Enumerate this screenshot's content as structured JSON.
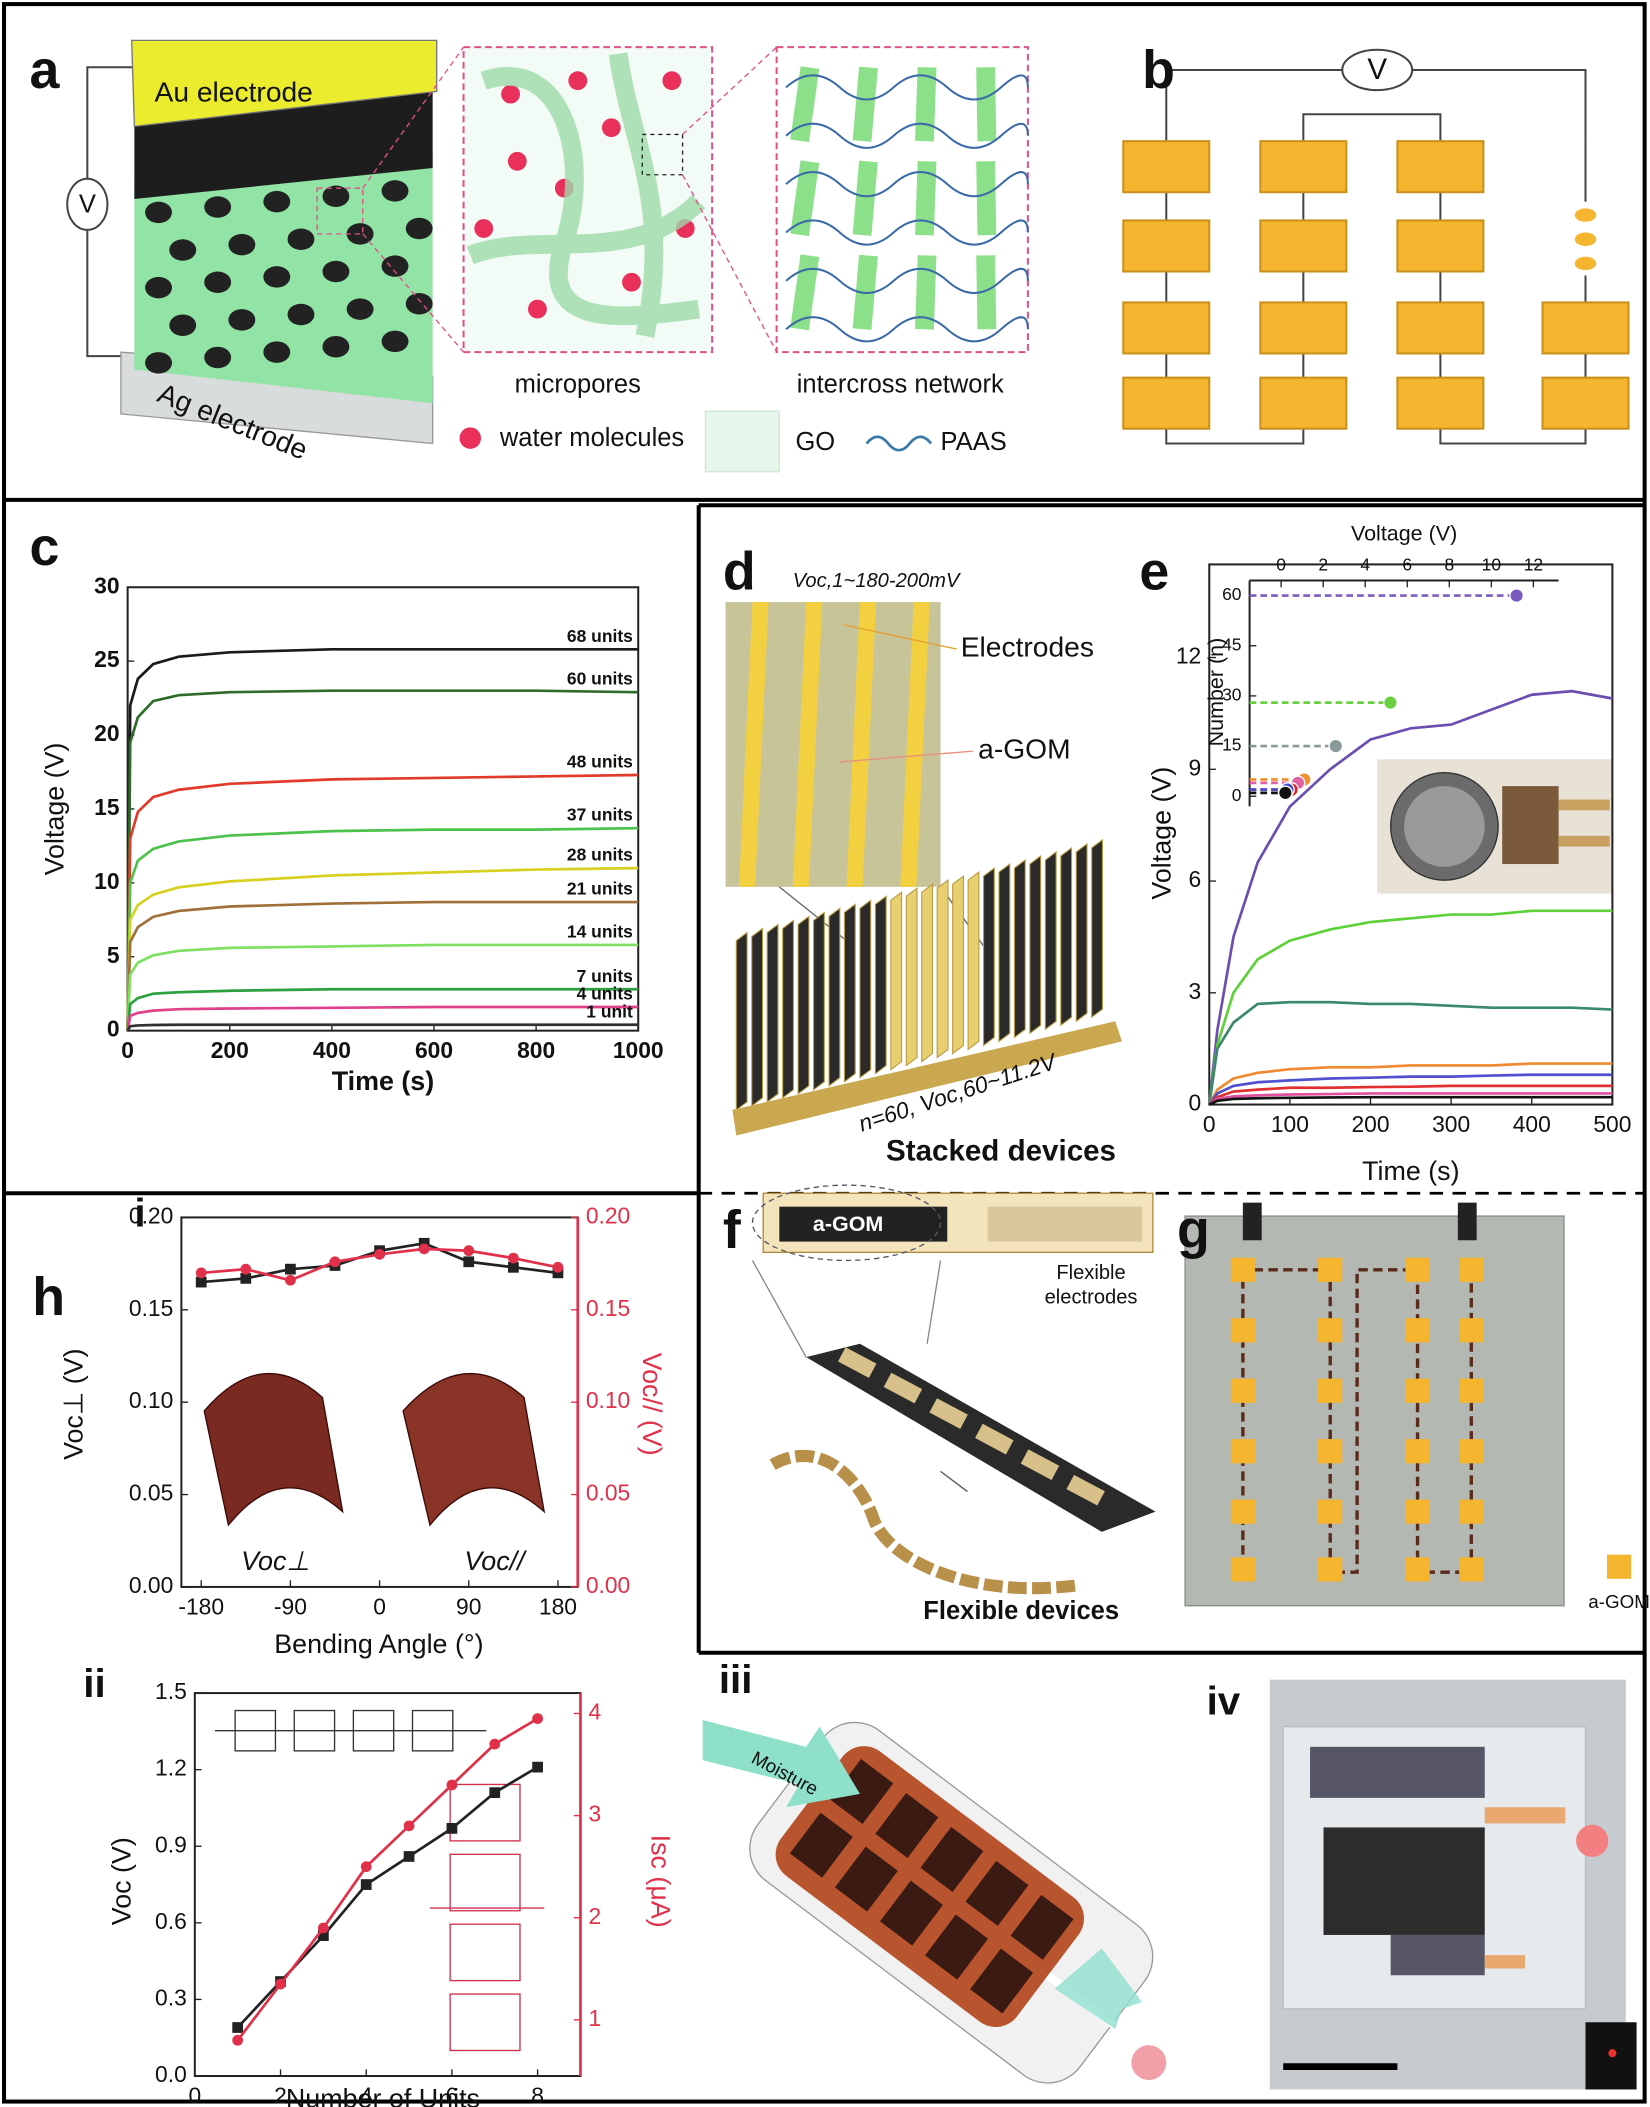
{
  "panels": {
    "a": {
      "letter": "a",
      "au": "Au electrode",
      "ag": "Ag electrode",
      "v": "V",
      "micropores": "micropores",
      "network": "intercross network",
      "water": "water molecules",
      "go": "GO",
      "paas": "PAAS"
    },
    "b": {
      "letter": "b",
      "v": "V"
    },
    "c": {
      "letter": "c"
    },
    "d": {
      "letter": "d",
      "voc1": "Voc,1~180-200mV",
      "electrodes": "Electrodes",
      "agom": "a-GOM",
      "voc60": "n=60, Voc,60~11.2V",
      "caption": "Stacked devices"
    },
    "e": {
      "letter": "e"
    },
    "f": {
      "letter": "f",
      "agom": "a-GOM",
      "electrodes": [
        "Flexible",
        "electrodes"
      ],
      "caption": "Flexible devices"
    },
    "g": {
      "letter": "g",
      "agom": "a-GOM"
    },
    "h": {
      "letter": "h",
      "i": "i",
      "ii": "ii",
      "iii": "iii",
      "moisture": "Moisture",
      "iv": "iv"
    }
  },
  "chart_data": [
    {
      "type": "line",
      "xlabel": "Time (s)",
      "ylabel": "Voltage (V)",
      "x": [
        0,
        5,
        20,
        50,
        100,
        200,
        400,
        600,
        800,
        1000
      ],
      "xlim": [
        0,
        1000
      ],
      "xticks": [
        0,
        200,
        400,
        600,
        800,
        1000
      ],
      "ylim": [
        0,
        30
      ],
      "yticks": [
        0,
        5,
        10,
        15,
        20,
        25,
        30
      ],
      "series": [
        {
          "name": "68 units",
          "color": "#1a1a1a",
          "values": [
            0,
            22,
            23.8,
            24.8,
            25.3,
            25.6,
            25.8,
            25.8,
            25.8,
            25.8
          ]
        },
        {
          "name": "60 units",
          "color": "#2f6b2a",
          "values": [
            0,
            19.5,
            21.2,
            22.3,
            22.7,
            22.9,
            23,
            23,
            23,
            22.9
          ]
        },
        {
          "name": "48 units",
          "color": "#e23a2a",
          "values": [
            0,
            13,
            14.8,
            15.8,
            16.3,
            16.7,
            17,
            17.1,
            17.2,
            17.3
          ]
        },
        {
          "name": "37 units",
          "color": "#4cc24a",
          "values": [
            0,
            10,
            11.5,
            12.3,
            12.8,
            13.2,
            13.5,
            13.6,
            13.6,
            13.7
          ]
        },
        {
          "name": "28 units",
          "color": "#d8d020",
          "values": [
            0,
            7.5,
            8.5,
            9.2,
            9.7,
            10.1,
            10.5,
            10.7,
            10.9,
            11
          ]
        },
        {
          "name": "21 units",
          "color": "#a0703a",
          "values": [
            0,
            6,
            7,
            7.7,
            8.1,
            8.4,
            8.6,
            8.7,
            8.7,
            8.7
          ]
        },
        {
          "name": "14 units",
          "color": "#7ee060",
          "values": [
            0,
            3.8,
            4.6,
            5.1,
            5.4,
            5.6,
            5.7,
            5.8,
            5.8,
            5.8
          ]
        },
        {
          "name": "7 units",
          "color": "#2ea040",
          "values": [
            0,
            1.8,
            2.2,
            2.5,
            2.6,
            2.7,
            2.8,
            2.8,
            2.8,
            2.8
          ]
        },
        {
          "name": "4 units",
          "color": "#e0408a",
          "values": [
            0,
            1,
            1.2,
            1.35,
            1.45,
            1.5,
            1.55,
            1.6,
            1.6,
            1.6
          ]
        },
        {
          "name": "1 unit",
          "color": "#303030",
          "values": [
            0,
            0.3,
            0.35,
            0.38,
            0.4,
            0.4,
            0.4,
            0.4,
            0.4,
            0.4
          ]
        }
      ]
    },
    {
      "type": "line",
      "xlabel": "Time (s)",
      "ylabel": "Voltage (V)",
      "x": [
        0,
        10,
        30,
        60,
        100,
        150,
        200,
        250,
        300,
        350,
        400,
        450,
        500
      ],
      "xlim": [
        0,
        500
      ],
      "xticks": [
        0,
        100,
        200,
        300,
        400,
        500
      ],
      "ylim": [
        0,
        14.5
      ],
      "yticks": [
        0,
        3,
        6,
        9,
        12
      ],
      "series": [
        {
          "color": "#6a4fb0",
          "values": [
            0,
            2,
            4.5,
            6.5,
            8,
            9,
            9.8,
            10.1,
            10.2,
            10.6,
            11,
            11.1,
            10.9
          ]
        },
        {
          "color": "#5ed13a",
          "values": [
            0,
            1.6,
            3,
            3.9,
            4.4,
            4.7,
            4.9,
            5,
            5.1,
            5.1,
            5.2,
            5.2,
            5.2
          ]
        },
        {
          "color": "#3a8a6a",
          "values": [
            0,
            1.5,
            2.2,
            2.7,
            2.75,
            2.75,
            2.7,
            2.7,
            2.65,
            2.6,
            2.6,
            2.6,
            2.55
          ]
        },
        {
          "color": "#f08a30",
          "values": [
            0,
            0.4,
            0.7,
            0.85,
            0.95,
            1,
            1,
            1.05,
            1.05,
            1.05,
            1.1,
            1.1,
            1.1
          ]
        },
        {
          "color": "#5050d0",
          "values": [
            0,
            0.3,
            0.5,
            0.6,
            0.65,
            0.7,
            0.72,
            0.75,
            0.75,
            0.78,
            0.8,
            0.8,
            0.8
          ]
        },
        {
          "color": "#e03030",
          "values": [
            0,
            0.2,
            0.35,
            0.4,
            0.45,
            0.45,
            0.47,
            0.48,
            0.5,
            0.5,
            0.5,
            0.5,
            0.5
          ]
        },
        {
          "color": "#e050a0",
          "values": [
            0,
            0.15,
            0.22,
            0.25,
            0.27,
            0.28,
            0.3,
            0.3,
            0.3,
            0.3,
            0.3,
            0.3,
            0.3
          ]
        },
        {
          "color": "#111111",
          "values": [
            0,
            0.1,
            0.15,
            0.17,
            0.18,
            0.19,
            0.2,
            0.2,
            0.2,
            0.2,
            0.2,
            0.2,
            0.2
          ]
        }
      ]
    },
    {
      "type": "scatter",
      "xlabel": "Voltage (V)",
      "ylabel": "Number (n)",
      "xlim": [
        -1.5,
        13.2
      ],
      "xticks": [
        0,
        2,
        4,
        6,
        8,
        10,
        12
      ],
      "ylim": [
        -3,
        64.5
      ],
      "yticks": [
        0,
        15,
        30,
        45,
        60
      ],
      "series": [
        {
          "color": "#7a5cc0",
          "x": [
            11.2
          ],
          "values": [
            60
          ]
        },
        {
          "color": "#6ad040",
          "x": [
            5.2
          ],
          "values": [
            28
          ]
        },
        {
          "color": "#8a9a9a",
          "x": [
            2.6
          ],
          "values": [
            15
          ]
        },
        {
          "color": "#f09030",
          "x": [
            1.1
          ],
          "values": [
            5
          ]
        },
        {
          "color": "#e060a0",
          "x": [
            0.8
          ],
          "values": [
            4
          ]
        },
        {
          "color": "#e02020",
          "x": [
            0.5
          ],
          "values": [
            2
          ]
        },
        {
          "color": "#4050d0",
          "x": [
            0.3
          ],
          "values": [
            2
          ]
        },
        {
          "color": "#111111",
          "x": [
            0.2
          ],
          "values": [
            1
          ]
        }
      ]
    },
    {
      "type": "line",
      "xlabel": "Bending Angle (°)",
      "ylabel": "Voc⊥ (V)",
      "y2label": "Voc// (V)",
      "annotations": [
        "Voc⊥",
        "Voc//"
      ],
      "x": [
        -180,
        -135,
        -90,
        -45,
        0,
        45,
        90,
        135,
        180
      ],
      "xlim": [
        -200,
        200
      ],
      "xticks": [
        -180,
        -90,
        0,
        90,
        180
      ],
      "ylim": [
        0,
        0.2
      ],
      "yticks": [
        {
          "value": 0,
          "label": "0.00"
        },
        0.05,
        {
          "value": 0.1,
          "label": "0.10"
        },
        0.15,
        {
          "value": 0.2,
          "label": "0.20"
        }
      ],
      "y2lim": [
        0,
        0.2
      ],
      "y2ticks": [
        {
          "value": 0,
          "label": "0.00"
        },
        0.05,
        {
          "value": 0.1,
          "label": "0.10"
        },
        0.15,
        {
          "value": 0.2,
          "label": "0.20"
        }
      ],
      "series": [
        {
          "color": "#222222",
          "marker": "square",
          "values": [
            0.165,
            0.167,
            0.172,
            0.174,
            0.182,
            0.186,
            0.176,
            0.173,
            0.17
          ]
        },
        {
          "color": "#e0304a",
          "marker": "circle",
          "axis": "y2",
          "values": [
            0.17,
            0.172,
            0.166,
            0.176,
            0.18,
            0.183,
            0.182,
            0.178,
            0.173
          ]
        }
      ]
    },
    {
      "type": "line",
      "xlabel": "Number of Units",
      "ylabel": "Voc (V)",
      "y2label": "Isc (μA)",
      "x": [
        1,
        2,
        3,
        4,
        5,
        6,
        7,
        8
      ],
      "xlim": [
        0,
        9
      ],
      "xticks": [
        0,
        2,
        4,
        6,
        8
      ],
      "ylim": [
        0,
        1.5
      ],
      "yticks": [
        {
          "value": 0,
          "label": "0.0"
        },
        0.3,
        0.6,
        0.9,
        1.2,
        1.5
      ],
      "y2lim": [
        0.45,
        4.2
      ],
      "y2ticks": [
        1,
        2,
        3,
        4
      ],
      "series": [
        {
          "color": "#222222",
          "marker": "square",
          "values": [
            0.19,
            0.37,
            0.55,
            0.75,
            0.86,
            0.97,
            1.11,
            1.21
          ]
        },
        {
          "color": "#e0304a",
          "marker": "circle",
          "axis": "y2",
          "values": [
            0.8,
            1.35,
            1.9,
            2.5,
            2.9,
            3.3,
            3.7,
            3.95
          ]
        }
      ]
    }
  ]
}
